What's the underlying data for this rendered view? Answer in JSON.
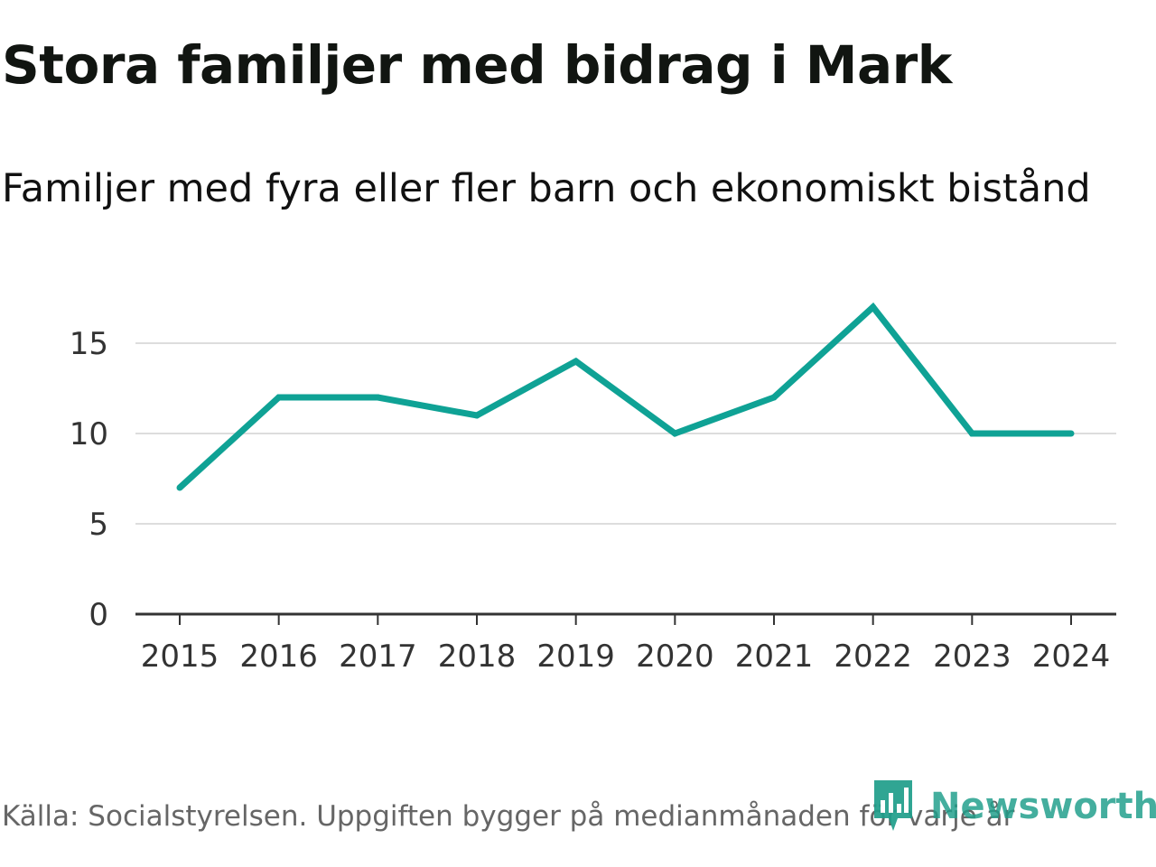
{
  "title": "Stora familjer med bidrag i Mark",
  "subtitle": "Familjer med fyra eller fler barn och ekonomiskt bistånd",
  "footer": "Källa: Socialstyrelsen. Uppgiften bygger på medianmånaden för varje år",
  "brand": "Newsworthy",
  "colors": {
    "line": "#0fa295",
    "grid": "#dddddd",
    "axis": "#333333"
  },
  "chart_data": {
    "type": "line",
    "title": "Stora familjer med bidrag i Mark",
    "subtitle": "Familjer med fyra eller fler barn och ekonomiskt bistånd",
    "xlabel": "",
    "ylabel": "",
    "categories": [
      "2015",
      "2016",
      "2017",
      "2018",
      "2019",
      "2020",
      "2021",
      "2022",
      "2023",
      "2024"
    ],
    "series": [
      {
        "name": "Familjer med fyra eller fler barn och ekonomiskt bistånd",
        "values": [
          7,
          12,
          12,
          11,
          14,
          10,
          12,
          17,
          10,
          10
        ]
      }
    ],
    "yticks": [
      "0",
      "5",
      "10",
      "15"
    ],
    "ylim": [
      0,
      17
    ],
    "grid": true
  }
}
